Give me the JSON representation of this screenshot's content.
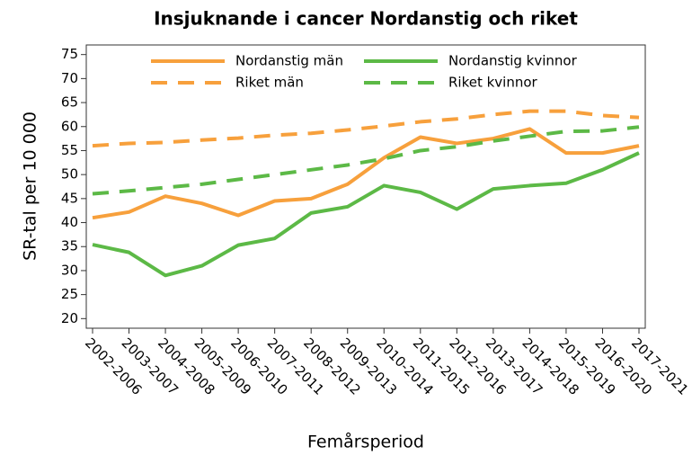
{
  "chart_data": {
    "type": "line",
    "title": "Insjuknande i cancer Nordanstig och riket",
    "x_label": "Femårsperiod",
    "y_label": "SR-tal per 10 000",
    "categories": [
      "2002-2006",
      "2003-2007",
      "2004-2008",
      "2005-2009",
      "2006-2010",
      "2007-2011",
      "2008-2012",
      "2009-2013",
      "2010-2014",
      "2011-2015",
      "2012-2016",
      "2013-2017",
      "2014-2018",
      "2015-2019",
      "2016-2020",
      "2017-2021"
    ],
    "series": [
      {
        "name": "Nordanstig män",
        "color": "#f7a03c",
        "dash": false,
        "values": [
          41,
          42.2,
          45.5,
          44,
          41.5,
          44.5,
          45,
          48,
          53.5,
          57.8,
          56.5,
          57.5,
          59.5,
          54.5,
          54.5,
          56
        ]
      },
      {
        "name": "Nordanstig kvinnor",
        "color": "#5cb946",
        "dash": false,
        "values": [
          35.4,
          33.8,
          29,
          31,
          35.3,
          36.7,
          42,
          43.3,
          47.7,
          46.3,
          42.8,
          47,
          47.7,
          48.2,
          51,
          54.5
        ]
      },
      {
        "name": "Riket män",
        "color": "#f7a03c",
        "dash": true,
        "values": [
          56,
          56.5,
          56.7,
          57.2,
          57.6,
          58.2,
          58.6,
          59.3,
          60.1,
          61,
          61.6,
          62.5,
          63.2,
          63.2,
          62.3,
          61.9
        ]
      },
      {
        "name": "Riket kvinnor",
        "color": "#5cb946",
        "dash": true,
        "values": [
          46,
          46.6,
          47.3,
          48,
          49,
          50,
          51,
          52,
          53.3,
          55,
          55.8,
          57,
          58,
          59,
          59.1,
          59.9
        ]
      }
    ],
    "ylim": [
      18,
      77
    ],
    "yticks": [
      20,
      25,
      30,
      35,
      40,
      45,
      50,
      55,
      60,
      65,
      70,
      75
    ],
    "grid": false
  }
}
